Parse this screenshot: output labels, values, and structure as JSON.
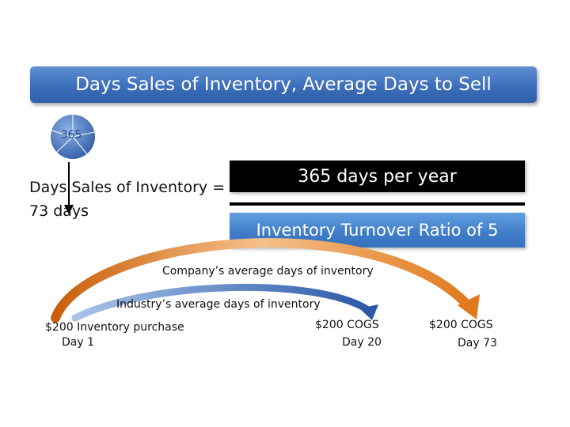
{
  "title": "Days Sales of Inventory, Average Days to Sell",
  "pie": {
    "label": "365",
    "color": "#4a78c2"
  },
  "formula": {
    "lhs_line1": "Days Sales of Inventory =",
    "lhs_line2": "73 days",
    "numerator": "365 days per year",
    "denominator": "Inventory Turnover Ratio of 5"
  },
  "timeline": {
    "company_label": "Company’s average days of inventory",
    "industry_label": "Industry’s average days of inventory",
    "purchase_label": "$200 Inventory purchase",
    "day1": "Day 1",
    "cogs_20": "$200 COGS",
    "day20": "Day 20",
    "cogs_73": "$200 COGS",
    "day73": "Day 73",
    "company_arrow_color": "#e07a1e",
    "industry_arrow_color": "#3a66b0"
  }
}
